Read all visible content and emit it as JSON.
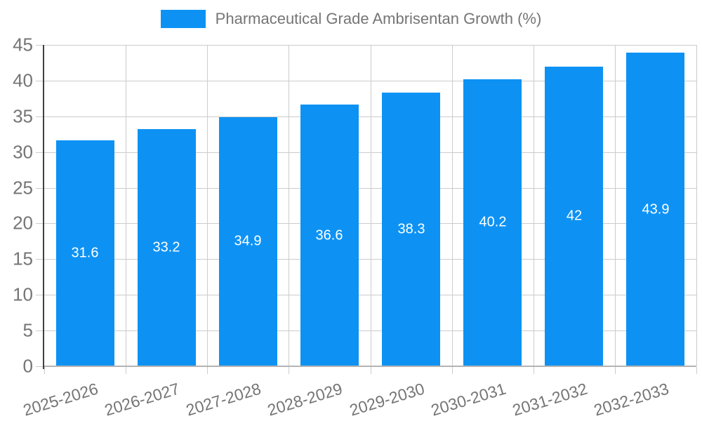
{
  "chart_data": {
    "type": "bar",
    "title": "Pharmaceutical Grade Ambrisentan Growth (%)",
    "categories": [
      "2025-2026",
      "2026-2027",
      "2027-2028",
      "2028-2029",
      "2029-2030",
      "2030-2031",
      "2031-2032",
      "2032-2033"
    ],
    "values": [
      31.6,
      33.2,
      34.9,
      36.6,
      38.3,
      40.2,
      42,
      43.9
    ],
    "value_labels": [
      "31.6",
      "33.2",
      "34.9",
      "36.6",
      "38.3",
      "40.2",
      "42",
      "43.9"
    ],
    "xlabel": "",
    "ylabel": "",
    "ylim": [
      0,
      45
    ],
    "ytick_step": 5,
    "ytick_labels": [
      "0",
      "5",
      "10",
      "15",
      "20",
      "25",
      "30",
      "35",
      "40",
      "45"
    ],
    "grid": true,
    "legend_position": "top",
    "colors": {
      "bar": "#0d92f4",
      "value_label": "#ffffff",
      "axis_text": "#757575",
      "gridline": "#cccccc",
      "axis_line": "#404040",
      "baseline": "#b3b3b3"
    }
  }
}
